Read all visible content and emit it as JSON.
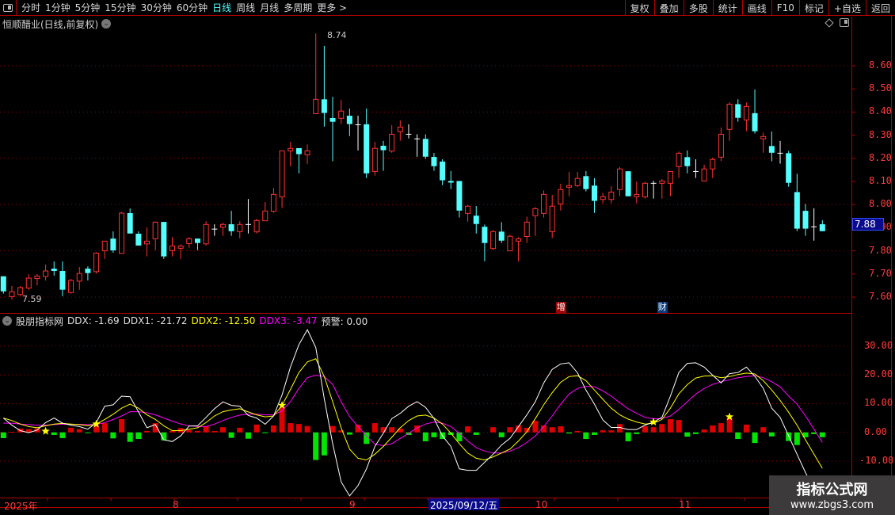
{
  "toolbar": {
    "periods": [
      "分时",
      "1分钟",
      "5分钟",
      "15分钟",
      "30分钟",
      "60分钟",
      "日线",
      "周线",
      "月线",
      "多周期",
      "更多 >"
    ],
    "active_period": "日线",
    "buttons": [
      "复权",
      "叠加",
      "多股",
      "统计",
      "画线",
      "F10",
      "标记",
      "+自选",
      "返回"
    ]
  },
  "chart": {
    "title": "恒顺醋业(日线,前复权)",
    "price_axis": [
      "8.60",
      "8.50",
      "8.40",
      "8.30",
      "8.20",
      "8.10",
      "8.00",
      "7.90",
      "7.80",
      "7.70",
      "7.60"
    ],
    "current_price": "7.88",
    "high_label": "8.74",
    "low_label": "7.59",
    "badges": [
      {
        "text": "增",
        "index": 66,
        "color": "#a00000"
      },
      {
        "text": "财",
        "index": 78,
        "color": "#0a3a78"
      }
    ],
    "up_color": "#ff3232",
    "down_color": "#54ffff",
    "doji_color": "#ffffff"
  },
  "indicator": {
    "name": "股朋指标网",
    "ddx": "DDX: -1.69",
    "ddx1": "DDX1: -21.72",
    "ddx2": "DDX2: -12.50",
    "ddx3": "DDX3: -3.47",
    "warn": "预警: 0.00",
    "axis": [
      "30.00",
      "20.00",
      "10.00",
      "0.00",
      "-10.00"
    ],
    "colors": {
      "ddx1": "#ffffff",
      "ddx2": "#ffff00",
      "ddx3": "#ff00ff",
      "pos": "#e00000",
      "neg": "#00e600"
    }
  },
  "time_axis": {
    "labels": [
      "2025年",
      "8",
      "9",
      "10",
      "11"
    ],
    "cursor": "2025/09/12/五"
  },
  "watermark": {
    "line1": "指标公式网",
    "line2": "www.zbgs3.com"
  },
  "chart_data": {
    "type": "candlestick",
    "ohlc": [
      [
        7.69,
        7.69,
        7.615,
        7.625
      ],
      [
        7.602,
        7.648,
        7.59,
        7.623
      ],
      [
        7.611,
        7.648,
        7.605,
        7.641
      ],
      [
        7.639,
        7.699,
        7.632,
        7.682
      ],
      [
        7.68,
        7.699,
        7.651,
        7.691
      ],
      [
        7.689,
        7.741,
        7.672,
        7.713
      ],
      [
        7.723,
        7.754,
        7.693,
        7.713
      ],
      [
        7.713,
        7.754,
        7.604,
        7.632
      ],
      [
        7.62,
        7.679,
        7.615,
        7.672
      ],
      [
        7.669,
        7.73,
        7.632,
        7.702
      ],
      [
        7.723,
        7.733,
        7.672,
        7.704
      ],
      [
        7.71,
        7.794,
        7.702,
        7.79
      ],
      [
        7.8,
        7.842,
        7.765,
        7.842
      ],
      [
        7.853,
        7.884,
        7.792,
        7.802
      ],
      [
        7.789,
        7.968,
        7.789,
        7.963
      ],
      [
        7.963,
        7.983,
        7.875,
        7.875
      ],
      [
        7.874,
        7.884,
        7.823,
        7.823
      ],
      [
        7.83,
        7.901,
        7.776,
        7.842
      ],
      [
        7.852,
        7.927,
        7.803,
        7.924
      ],
      [
        7.925,
        7.925,
        7.765,
        7.776
      ],
      [
        7.801,
        7.86,
        7.776,
        7.821
      ],
      [
        7.811,
        7.828,
        7.765,
        7.821
      ],
      [
        7.831,
        7.86,
        7.813,
        7.852
      ],
      [
        7.853,
        7.853,
        7.803,
        7.834
      ],
      [
        7.83,
        7.928,
        7.823,
        7.914
      ],
      [
        7.894,
        7.915,
        7.865,
        7.894
      ],
      [
        7.902,
        7.922,
        7.865,
        7.914
      ],
      [
        7.915,
        7.973,
        7.865,
        7.885
      ],
      [
        7.883,
        7.928,
        7.854,
        7.914
      ],
      [
        7.914,
        8.024,
        7.875,
        7.914
      ],
      [
        7.882,
        7.939,
        7.875,
        7.931
      ],
      [
        7.93,
        8.011,
        7.93,
        7.972
      ],
      [
        7.971,
        8.072,
        7.965,
        8.044
      ],
      [
        8.033,
        8.232,
        7.985,
        8.232
      ],
      [
        8.232,
        8.271,
        8.165,
        8.243
      ],
      [
        8.244,
        8.244,
        8.135,
        8.218
      ],
      [
        8.215,
        8.26,
        8.176,
        8.232
      ],
      [
        8.393,
        8.74,
        8.393,
        8.455
      ],
      [
        8.455,
        8.686,
        8.337,
        8.396
      ],
      [
        8.374,
        8.466,
        8.187,
        8.358
      ],
      [
        8.373,
        8.452,
        8.348,
        8.404
      ],
      [
        8.384,
        8.415,
        8.296,
        8.348
      ],
      [
        8.345,
        8.384,
        8.234,
        8.345
      ],
      [
        8.347,
        8.415,
        8.115,
        8.135
      ],
      [
        8.143,
        8.271,
        8.125,
        8.243
      ],
      [
        8.254,
        8.275,
        8.146,
        8.235
      ],
      [
        8.231,
        8.343,
        8.224,
        8.304
      ],
      [
        8.315,
        8.364,
        8.276,
        8.335
      ],
      [
        8.304,
        8.347,
        8.286,
        8.304
      ],
      [
        8.284,
        8.304,
        8.207,
        8.284
      ],
      [
        8.284,
        8.304,
        8.197,
        8.207
      ],
      [
        8.206,
        8.223,
        8.146,
        8.166
      ],
      [
        8.186,
        8.196,
        8.084,
        8.105
      ],
      [
        8.102,
        8.145,
        8.067,
        8.095
      ],
      [
        8.102,
        8.102,
        7.944,
        7.974
      ],
      [
        7.962,
        7.998,
        7.926,
        7.993
      ],
      [
        7.952,
        7.994,
        7.875,
        7.916
      ],
      [
        7.904,
        7.914,
        7.755,
        7.834
      ],
      [
        7.81,
        7.89,
        7.803,
        7.883
      ],
      [
        7.883,
        7.924,
        7.834,
        7.844
      ],
      [
        7.8,
        7.869,
        7.8,
        7.863
      ],
      [
        7.842,
        7.859,
        7.755,
        7.852
      ],
      [
        7.862,
        7.948,
        7.834,
        7.924
      ],
      [
        7.952,
        7.989,
        7.865,
        7.982
      ],
      [
        7.962,
        8.061,
        7.944,
        8.044
      ],
      [
        7.883,
        8.042,
        7.855,
        7.993
      ],
      [
        8.003,
        8.09,
        7.974,
        8.065
      ],
      [
        8.075,
        8.141,
        8.036,
        8.082
      ],
      [
        8.082,
        8.141,
        8.076,
        8.113
      ],
      [
        8.123,
        8.145,
        8.057,
        8.067
      ],
      [
        8.082,
        8.114,
        7.964,
        8.016
      ],
      [
        8.022,
        8.051,
        8.005,
        8.034
      ],
      [
        8.022,
        8.079,
        8.005,
        8.054
      ],
      [
        8.065,
        8.162,
        8.036,
        8.154
      ],
      [
        8.144,
        8.144,
        8.036,
        8.036
      ],
      [
        8.034,
        8.1,
        8.005,
        8.044
      ],
      [
        8.033,
        8.099,
        8.026,
        8.092
      ],
      [
        8.092,
        8.103,
        8.026,
        8.092
      ],
      [
        8.092,
        8.11,
        8.026,
        8.102
      ],
      [
        8.092,
        8.143,
        8.036,
        8.143
      ],
      [
        8.164,
        8.229,
        8.115,
        8.222
      ],
      [
        8.205,
        8.234,
        8.135,
        8.166
      ],
      [
        8.143,
        8.196,
        8.115,
        8.143
      ],
      [
        8.102,
        8.172,
        8.102,
        8.154
      ],
      [
        8.154,
        8.203,
        8.115,
        8.195
      ],
      [
        8.205,
        8.333,
        8.188,
        8.304
      ],
      [
        8.325,
        8.442,
        8.276,
        8.434
      ],
      [
        8.434,
        8.455,
        8.358,
        8.375
      ],
      [
        8.366,
        8.441,
        8.317,
        8.424
      ],
      [
        8.395,
        8.497,
        8.307,
        8.317
      ],
      [
        8.284,
        8.311,
        8.224,
        8.294
      ],
      [
        8.253,
        8.316,
        8.187,
        8.224
      ],
      [
        8.222,
        8.275,
        8.177,
        8.222
      ],
      [
        8.222,
        8.232,
        8.077,
        8.094
      ],
      [
        8.054,
        8.133,
        7.885,
        7.896
      ],
      [
        7.973,
        8.003,
        7.865,
        7.896
      ],
      [
        7.904,
        7.984,
        7.844,
        7.904
      ],
      [
        7.915,
        7.932,
        7.885,
        7.885
      ]
    ],
    "ylim": [
      7.55,
      8.78
    ],
    "indicator": {
      "ylim": [
        -17,
        39
      ],
      "ddx": [
        -2.0,
        0.2,
        1.3,
        1.1,
        1.4,
        0.4,
        -0.9,
        -2.0,
        1.6,
        1.1,
        -0.2,
        2.3,
        3.2,
        -2.1,
        4.6,
        -3.3,
        -2.3,
        0.5,
        3.2,
        -2.8,
        0.5,
        1.5,
        0.8,
        0.5,
        2.1,
        0.5,
        1.8,
        -1.9,
        1.6,
        -2.2,
        2.7,
        -0.3,
        2.4,
        8.7,
        3.2,
        2.9,
        2.2,
        -9.6,
        -8.0,
        2.2,
        0.7,
        -0.8,
        2.7,
        -4.0,
        3.2,
        1.8,
        1.8,
        1.3,
        -0.9,
        2.4,
        -3.1,
        -1.7,
        -2.3,
        -0.9,
        -3.1,
        2.1,
        -0.9,
        0,
        1.8,
        -1.7,
        1.8,
        2.4,
        1.6,
        4.0,
        2.4,
        1.8,
        2.1,
        -0.4,
        0.5,
        -2.3,
        -0.9,
        0.7,
        0.7,
        2.9,
        -3.1,
        -0.6,
        2.1,
        1.8,
        2.9,
        4.6,
        4.3,
        -1.5,
        -0.6,
        1.0,
        2.4,
        3.2,
        5.1,
        -2.3,
        2.7,
        -3.7,
        1.8,
        -1.4,
        0,
        -3.0,
        -4.4,
        -1.7,
        -0.6,
        -1.69
      ],
      "ddx1": [
        5.0,
        2.5,
        0.6,
        -0.1,
        0.8,
        3.4,
        5.0,
        3.2,
        2.5,
        2.0,
        1.1,
        3.4,
        9.1,
        9.6,
        12.6,
        12.4,
        7.1,
        1.6,
        2.7,
        -2.6,
        -3.2,
        -1.2,
        2.2,
        2.3,
        5.2,
        8.2,
        10.6,
        9.4,
        9.1,
        5.9,
        5.0,
        2.8,
        5.7,
        13.0,
        22.7,
        30.5,
        35.7,
        29.5,
        11.7,
        -3.9,
        -17.2,
        -22.1,
        -18.5,
        -12.7,
        -4.9,
        -0.3,
        4.8,
        6.6,
        9.1,
        10.7,
        8.7,
        4.8,
        -1.2,
        -4.9,
        -12.7,
        -13.2,
        -13.2,
        -10.4,
        -7.6,
        -4.4,
        -2.1,
        2.0,
        6.1,
        10.7,
        17.2,
        21.9,
        23.8,
        24.2,
        20.7,
        14.7,
        9.8,
        4.3,
        1.7,
        1.7,
        1.0,
        1.0,
        2.5,
        3.6,
        5.2,
        12.6,
        20.8,
        24.0,
        24.2,
        22.7,
        19.9,
        17.2,
        20.4,
        20.8,
        22.7,
        19.5,
        15.3,
        8.4,
        5.2,
        -1.2,
        -7.6,
        -14.0,
        -19.5,
        -21.72
      ],
      "ddx2": [
        5.0,
        4.1,
        2.9,
        2.0,
        1.6,
        2.3,
        2.9,
        3.1,
        2.9,
        2.7,
        2.3,
        2.9,
        4.5,
        6.3,
        8.4,
        9.8,
        8.4,
        6.1,
        4.5,
        2.3,
        0.6,
        0.6,
        1.1,
        1.6,
        3.4,
        5.7,
        7.2,
        7.8,
        8.2,
        7.1,
        6.1,
        5.4,
        5.7,
        9.4,
        14.9,
        20.8,
        24.5,
        25.6,
        19.4,
        10.7,
        1.6,
        -5.8,
        -9.0,
        -9.6,
        -7.6,
        -4.9,
        -1.7,
        1.6,
        4.1,
        5.7,
        6.0,
        5.0,
        2.9,
        -0.3,
        -3.9,
        -7.2,
        -9.0,
        -9.6,
        -8.5,
        -7.2,
        -5.8,
        -3.0,
        0.2,
        4.8,
        9.6,
        13.8,
        17.4,
        19.4,
        19.7,
        18.0,
        14.7,
        11.5,
        8.4,
        6.1,
        4.6,
        3.6,
        2.9,
        3.2,
        4.5,
        8.4,
        13.4,
        16.6,
        18.9,
        19.6,
        19.7,
        19.0,
        19.4,
        20.1,
        20.6,
        20.3,
        18.0,
        14.7,
        11.1,
        7.0,
        2.5,
        -2.6,
        -7.6,
        -12.5
      ],
      "ddx3": [
        3.2,
        3.2,
        2.9,
        2.7,
        2.5,
        2.5,
        2.7,
        2.8,
        2.8,
        2.8,
        2.7,
        2.7,
        3.4,
        4.5,
        5.7,
        7.2,
        7.2,
        6.8,
        6.1,
        5.0,
        3.9,
        2.9,
        2.3,
        2.0,
        2.0,
        2.9,
        4.1,
        5.2,
        6.0,
        6.3,
        6.3,
        6.1,
        6.1,
        7.5,
        10.7,
        15.3,
        19.0,
        19.9,
        19.4,
        16.7,
        10.7,
        5.5,
        2.0,
        -1.2,
        -4.1,
        -4.6,
        -3.9,
        -2.1,
        -0.3,
        1.6,
        2.9,
        3.6,
        3.2,
        2.0,
        -0.3,
        -3.0,
        -5.3,
        -6.5,
        -7.2,
        -7.2,
        -6.5,
        -5.3,
        -3.5,
        -1.2,
        2.0,
        5.7,
        9.8,
        13.3,
        15.3,
        16.0,
        15.8,
        14.4,
        12.6,
        10.3,
        8.2,
        6.6,
        5.2,
        4.7,
        4.8,
        5.7,
        8.0,
        10.7,
        13.3,
        15.3,
        16.7,
        17.6,
        18.3,
        19.0,
        19.4,
        19.7,
        19.0,
        17.6,
        15.8,
        12.6,
        9.8,
        5.7,
        1.1,
        -3.47
      ],
      "stars": [
        {
          "index": 5,
          "value": 0.4
        },
        {
          "index": 11,
          "value": 2.9
        },
        {
          "index": 33,
          "value": 9.4
        },
        {
          "index": 77,
          "value": 3.6
        },
        {
          "index": 86,
          "value": 5.4
        }
      ]
    }
  }
}
